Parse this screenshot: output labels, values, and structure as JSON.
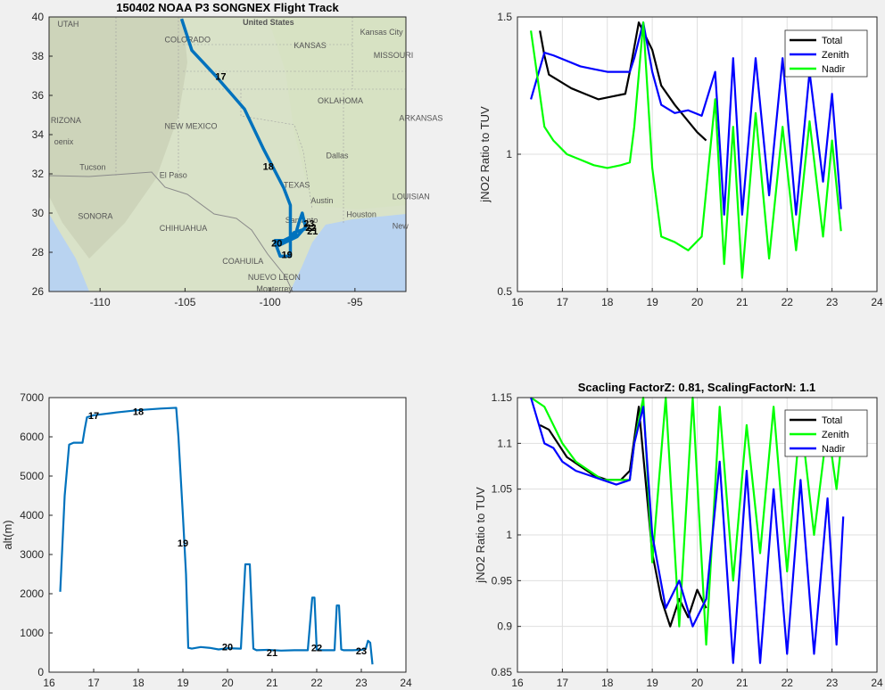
{
  "colors": {
    "total": "#000000",
    "zenith_top": "#0000ff",
    "nadir_top": "#00ff00",
    "zenith_bottom": "#00ff00",
    "nadir_bottom": "#0000ff",
    "track": "#0072bd"
  },
  "chart_data": [
    {
      "id": "map",
      "type": "scatter",
      "title": "150402 NOAA P3 SONGNEX Flight Track",
      "xlim": [
        -113,
        -92
      ],
      "ylim": [
        26,
        40
      ],
      "xticks": [
        -110,
        -105,
        -100,
        -95
      ],
      "yticks": [
        26,
        28,
        30,
        32,
        34,
        36,
        38,
        40
      ],
      "x": [
        -105.2,
        -104.6,
        -103.2,
        -101.5,
        -100.4,
        -99.2,
        -98.8,
        -98.8,
        -98.8,
        -99.4,
        -99.7,
        -99.2,
        -98.5,
        -98.3,
        -98.1,
        -98.0,
        -97.9,
        -98.4,
        -99.6,
        -99.7,
        -98.8,
        -98.6,
        -97.9
      ],
      "y": [
        39.9,
        38.3,
        37.0,
        35.3,
        33.3,
        31.3,
        30.4,
        29.0,
        27.8,
        27.8,
        28.5,
        28.6,
        28.9,
        29.5,
        30.0,
        29.6,
        29.3,
        28.8,
        28.3,
        28.6,
        28.6,
        29.0,
        29.2
      ],
      "hour_labels": [
        {
          "text": "17",
          "lon": -102.9,
          "lat": 36.8
        },
        {
          "text": "18",
          "lon": -100.1,
          "lat": 32.2
        },
        {
          "text": "20",
          "lon": -99.6,
          "lat": 28.3
        },
        {
          "text": "19",
          "lon": -99.0,
          "lat": 27.7
        },
        {
          "text": "23",
          "lon": -97.7,
          "lat": 29.3
        },
        {
          "text": "22",
          "lon": -97.6,
          "lat": 29.1
        },
        {
          "text": "21",
          "lon": -97.5,
          "lat": 28.9
        }
      ],
      "map_labels": [
        {
          "text": "United States",
          "lon": -101.6,
          "lat": 39.6
        },
        {
          "text": "UTAH",
          "lon": -112.5,
          "lat": 39.5
        },
        {
          "text": "COLORADO",
          "lon": -106.2,
          "lat": 38.7
        },
        {
          "text": "KANSAS",
          "lon": -98.6,
          "lat": 38.4
        },
        {
          "text": "Kansas City",
          "lon": -94.7,
          "lat": 39.1
        },
        {
          "text": "MISSOURI",
          "lon": -93.9,
          "lat": 37.9
        },
        {
          "text": "OKLAHOMA",
          "lon": -97.2,
          "lat": 35.6
        },
        {
          "text": "ARKANSAS",
          "lon": -92.4,
          "lat": 34.7
        },
        {
          "text": "RIZONA",
          "lon": -112.9,
          "lat": 34.6
        },
        {
          "text": "NEW MEXICO",
          "lon": -106.2,
          "lat": 34.3
        },
        {
          "text": "oenix",
          "lon": -112.7,
          "lat": 33.5
        },
        {
          "text": "Dallas",
          "lon": -96.7,
          "lat": 32.8
        },
        {
          "text": "Tucson",
          "lon": -111.2,
          "lat": 32.2
        },
        {
          "text": "El Paso",
          "lon": -106.5,
          "lat": 31.8
        },
        {
          "text": "TEXAS",
          "lon": -99.2,
          "lat": 31.3
        },
        {
          "text": "Austin",
          "lon": -97.6,
          "lat": 30.5
        },
        {
          "text": "SONORA",
          "lon": -111.3,
          "lat": 29.7
        },
        {
          "text": "CHIHUAHUA",
          "lon": -106.5,
          "lat": 29.1
        },
        {
          "text": "San Anto",
          "lon": -99.1,
          "lat": 29.5
        },
        {
          "text": "Houston",
          "lon": -95.5,
          "lat": 29.8
        },
        {
          "text": "LOUISIAN",
          "lon": -92.8,
          "lat": 30.7
        },
        {
          "text": "New",
          "lon": -92.8,
          "lat": 29.2
        },
        {
          "text": "COAHUILA",
          "lon": -102.8,
          "lat": 27.4
        },
        {
          "text": "NUEVO LEON",
          "lon": -101.3,
          "lat": 26.6
        },
        {
          "text": "Monterrey",
          "lon": -100.8,
          "lat": 26.0
        }
      ]
    },
    {
      "id": "top-right",
      "type": "line",
      "xlim": [
        16,
        24
      ],
      "ylim": [
        0.5,
        1.5
      ],
      "xticks": [
        16,
        17,
        18,
        19,
        20,
        21,
        22,
        23,
        24
      ],
      "yticks": [
        0.5,
        1,
        1.5
      ],
      "ylabel": "jNO2 Ratio to TUV",
      "legend": "top-right",
      "series": [
        {
          "name": "Total",
          "color": "#000000",
          "x": [
            16.5,
            16.6,
            16.7,
            16.9,
            17.2,
            17.5,
            17.8,
            18.1,
            18.4,
            18.5,
            18.7,
            19.0,
            19.2,
            19.5,
            19.8,
            20.0,
            20.2
          ],
          "y": [
            1.45,
            1.36,
            1.29,
            1.27,
            1.24,
            1.22,
            1.2,
            1.21,
            1.22,
            1.3,
            1.48,
            1.38,
            1.25,
            1.18,
            1.12,
            1.08,
            1.05
          ]
        },
        {
          "name": "Zenith",
          "color": "#0000ff",
          "x": [
            16.3,
            16.6,
            16.8,
            17.1,
            17.4,
            17.7,
            18.0,
            18.3,
            18.5,
            18.6,
            18.8,
            19.0,
            19.2,
            19.5,
            19.8,
            20.1,
            20.4,
            20.6,
            20.8,
            21.0,
            21.3,
            21.6,
            21.9,
            22.2,
            22.5,
            22.8,
            23.0,
            23.2
          ],
          "y": [
            1.2,
            1.37,
            1.36,
            1.34,
            1.32,
            1.31,
            1.3,
            1.3,
            1.3,
            1.35,
            1.48,
            1.3,
            1.18,
            1.15,
            1.16,
            1.14,
            1.3,
            0.78,
            1.35,
            0.78,
            1.35,
            0.85,
            1.35,
            0.78,
            1.3,
            0.9,
            1.22,
            0.8
          ]
        },
        {
          "name": "Nadir",
          "color": "#00ff00",
          "x": [
            16.3,
            16.6,
            16.8,
            17.1,
            17.4,
            17.7,
            18.0,
            18.3,
            18.5,
            18.6,
            18.8,
            19.0,
            19.2,
            19.5,
            19.8,
            20.1,
            20.4,
            20.6,
            20.8,
            21.0,
            21.3,
            21.6,
            21.9,
            22.2,
            22.5,
            22.8,
            23.0,
            23.2
          ],
          "y": [
            1.45,
            1.1,
            1.05,
            1.0,
            0.98,
            0.96,
            0.95,
            0.96,
            0.97,
            1.1,
            1.48,
            0.95,
            0.7,
            0.68,
            0.65,
            0.7,
            1.2,
            0.6,
            1.1,
            0.55,
            1.15,
            0.62,
            1.1,
            0.65,
            1.12,
            0.7,
            1.05,
            0.72
          ]
        }
      ]
    },
    {
      "id": "bottom-left",
      "type": "line",
      "xlim": [
        16,
        24
      ],
      "ylim": [
        0,
        7000
      ],
      "xticks": [
        16,
        17,
        18,
        19,
        20,
        21,
        22,
        23,
        24
      ],
      "yticks": [
        0,
        1000,
        2000,
        3000,
        4000,
        5000,
        6000,
        7000
      ],
      "ylabel": "alt(m)",
      "series": [
        {
          "name": "",
          "color": "#0072bd",
          "x": [
            16.25,
            16.35,
            16.45,
            16.55,
            16.75,
            16.8,
            16.85,
            17.0,
            17.5,
            18.0,
            18.5,
            18.85,
            18.9,
            19.0,
            19.07,
            19.12,
            19.2,
            19.4,
            19.6,
            19.8,
            20.0,
            20.3,
            20.4,
            20.5,
            20.58,
            20.65,
            20.9,
            21.2,
            21.5,
            21.8,
            21.9,
            21.95,
            22.0,
            22.1,
            22.4,
            22.45,
            22.5,
            22.55,
            22.6,
            22.8,
            23.0,
            23.1,
            23.15,
            23.2,
            23.25
          ],
          "y": [
            2050,
            4500,
            5800,
            5850,
            5850,
            6200,
            6500,
            6550,
            6620,
            6680,
            6720,
            6740,
            6000,
            4000,
            2500,
            620,
            600,
            640,
            620,
            580,
            610,
            600,
            2750,
            2750,
            600,
            560,
            570,
            550,
            560,
            560,
            1900,
            1900,
            580,
            560,
            560,
            1700,
            1700,
            580,
            560,
            560,
            570,
            600,
            800,
            750,
            200
          ]
        }
      ],
      "hour_labels": [
        {
          "text": "17",
          "x": 17.0,
          "y": 6550
        },
        {
          "text": "18",
          "x": 18.0,
          "y": 6650
        },
        {
          "text": "19",
          "x": 19.0,
          "y": 3300
        },
        {
          "text": "20",
          "x": 20.0,
          "y": 650
        },
        {
          "text": "21",
          "x": 21.0,
          "y": 500
        },
        {
          "text": "22",
          "x": 22.0,
          "y": 620
        },
        {
          "text": "23",
          "x": 23.0,
          "y": 550
        }
      ]
    },
    {
      "id": "bottom-right",
      "type": "line",
      "title": "Scacling FactorZ: 0.81, ScalingFactorN: 1.1",
      "xlim": [
        16,
        24
      ],
      "ylim": [
        0.85,
        1.15
      ],
      "xticks": [
        16,
        17,
        18,
        19,
        20,
        21,
        22,
        23,
        24
      ],
      "yticks": [
        0.85,
        0.9,
        0.95,
        1,
        1.05,
        1.1,
        1.15
      ],
      "ylabel": "jNO2 Ratio to TUV",
      "legend": "top-right",
      "series": [
        {
          "name": "Total",
          "color": "#000000",
          "x": [
            16.5,
            16.7,
            16.9,
            17.1,
            17.4,
            17.7,
            18.0,
            18.3,
            18.5,
            18.7,
            19.0,
            19.2,
            19.4,
            19.6,
            19.8,
            20.0,
            20.2
          ],
          "y": [
            1.12,
            1.115,
            1.1,
            1.085,
            1.075,
            1.065,
            1.06,
            1.06,
            1.07,
            1.14,
            0.98,
            0.93,
            0.9,
            0.93,
            0.91,
            0.94,
            0.92
          ]
        },
        {
          "name": "Zenith",
          "color": "#00ff00",
          "x": [
            16.3,
            16.6,
            16.8,
            17.0,
            17.3,
            17.6,
            17.9,
            18.2,
            18.5,
            18.6,
            18.8,
            19.0,
            19.3,
            19.6,
            19.9,
            20.2,
            20.5,
            20.8,
            21.1,
            21.4,
            21.7,
            22.0,
            22.3,
            22.6,
            22.9,
            23.1,
            23.25
          ],
          "y": [
            1.15,
            1.14,
            1.12,
            1.1,
            1.08,
            1.07,
            1.06,
            1.06,
            1.06,
            1.1,
            1.15,
            0.97,
            1.15,
            0.9,
            1.15,
            0.88,
            1.14,
            0.95,
            1.12,
            0.98,
            1.14,
            0.96,
            1.13,
            1.0,
            1.12,
            1.05,
            1.12
          ]
        },
        {
          "name": "Nadir",
          "color": "#0000ff",
          "x": [
            16.3,
            16.6,
            16.8,
            17.0,
            17.3,
            17.6,
            17.9,
            18.2,
            18.5,
            18.6,
            18.8,
            19.0,
            19.3,
            19.6,
            19.9,
            20.2,
            20.5,
            20.8,
            21.1,
            21.4,
            21.7,
            22.0,
            22.3,
            22.6,
            22.9,
            23.1,
            23.25
          ],
          "y": [
            1.15,
            1.1,
            1.095,
            1.08,
            1.07,
            1.065,
            1.06,
            1.055,
            1.06,
            1.1,
            1.14,
            1.0,
            0.92,
            0.95,
            0.9,
            0.93,
            1.08,
            0.86,
            1.07,
            0.86,
            1.05,
            0.87,
            1.06,
            0.87,
            1.04,
            0.88,
            1.02
          ]
        }
      ]
    }
  ]
}
